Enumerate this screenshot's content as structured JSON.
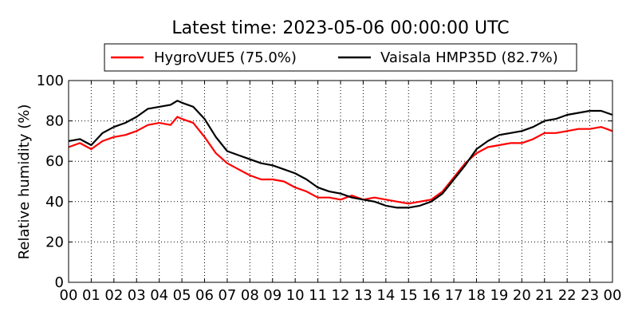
{
  "chart_data": {
    "type": "line",
    "title": "Latest time: 2023-05-06 00:00:00 UTC",
    "xlabel": "",
    "ylabel": "Relative humidity (%)",
    "xlim": [
      0,
      24
    ],
    "ylim": [
      0,
      100
    ],
    "grid": true,
    "legend_position": "top",
    "x_ticks": [
      "00",
      "01",
      "02",
      "03",
      "04",
      "05",
      "06",
      "07",
      "08",
      "09",
      "10",
      "11",
      "12",
      "13",
      "14",
      "15",
      "16",
      "17",
      "18",
      "19",
      "20",
      "21",
      "22",
      "23",
      "00"
    ],
    "y_ticks": [
      "0",
      "20",
      "40",
      "60",
      "80",
      "100"
    ],
    "series": [
      {
        "name": "HygroVUE5 (75.0%)",
        "color": "#ff0000",
        "x": [
          0,
          0.5,
          1,
          1.5,
          2,
          2.5,
          3,
          3.5,
          4,
          4.5,
          4.8,
          5,
          5.5,
          6,
          6.5,
          7,
          7.5,
          8,
          8.5,
          9,
          9.5,
          10,
          10.5,
          11,
          11.5,
          12,
          12.5,
          13,
          13.5,
          14,
          14.5,
          15,
          15.5,
          16,
          16.5,
          17,
          17.5,
          18,
          18.5,
          19,
          19.5,
          20,
          20.5,
          21,
          21.5,
          22,
          22.5,
          23,
          23.5,
          24
        ],
        "y": [
          67,
          69,
          66,
          70,
          72,
          73,
          75,
          78,
          79,
          78,
          82,
          81,
          79,
          72,
          64,
          59,
          56,
          53,
          51,
          51,
          50,
          47,
          45,
          42,
          42,
          41,
          43,
          41,
          42,
          41,
          40,
          39,
          40,
          41,
          45,
          52,
          59,
          64,
          67,
          68,
          69,
          69,
          71,
          74,
          74,
          75,
          76,
          76,
          77,
          75
        ]
      },
      {
        "name": "Vaisala HMP35D (82.7%)",
        "color": "#000000",
        "x": [
          0,
          0.5,
          1,
          1.5,
          2,
          2.5,
          3,
          3.5,
          4,
          4.5,
          4.8,
          5,
          5.5,
          6,
          6.5,
          7,
          7.5,
          8,
          8.5,
          9,
          9.5,
          10,
          10.5,
          11,
          11.5,
          12,
          12.5,
          13,
          13.5,
          14,
          14.5,
          15,
          15.5,
          16,
          16.5,
          17,
          17.5,
          18,
          18.5,
          19,
          19.5,
          20,
          20.5,
          21,
          21.5,
          22,
          22.5,
          23,
          23.5,
          24
        ],
        "y": [
          70,
          71,
          68,
          74,
          77,
          79,
          82,
          86,
          87,
          88,
          90,
          89,
          87,
          81,
          72,
          65,
          63,
          61,
          59,
          58,
          56,
          54,
          51,
          47,
          45,
          44,
          42,
          41,
          40,
          38,
          37,
          37,
          38,
          40,
          44,
          51,
          58,
          66,
          70,
          73,
          74,
          75,
          77,
          80,
          81,
          83,
          84,
          85,
          85,
          83
        ]
      }
    ]
  }
}
